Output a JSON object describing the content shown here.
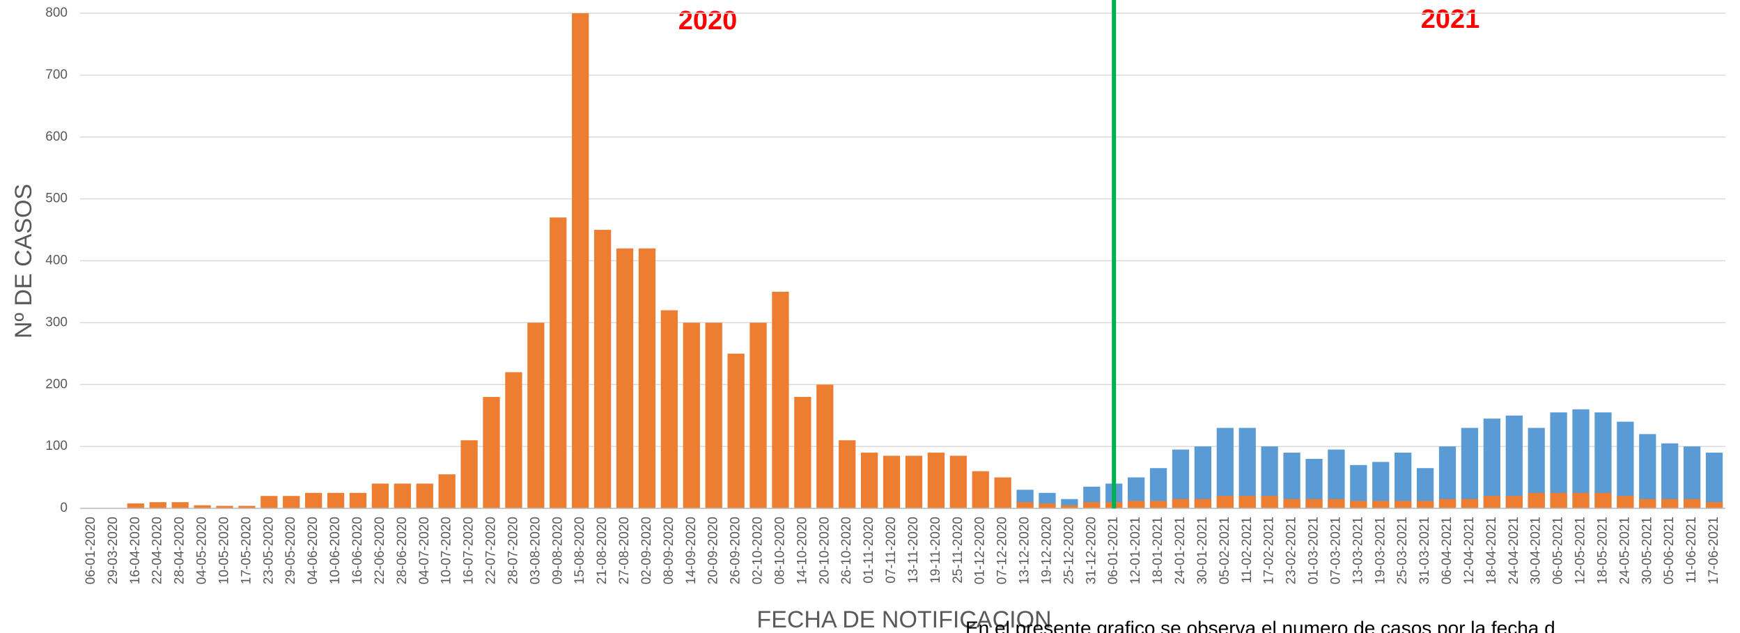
{
  "chart_data": {
    "type": "bar",
    "y_label": "Nº DE CASOS",
    "x_label": "FECHA DE NOTIFICACION",
    "annotations": [
      "2020",
      "2021"
    ],
    "note": "En el presente grafico se observa el numero de casos por la fecha d",
    "categories": [
      "06-01-2020",
      "29-03-2020",
      "16-04-2020",
      "22-04-2020",
      "28-04-2020",
      "04-05-2020",
      "10-05-2020",
      "17-05-2020",
      "23-05-2020",
      "29-05-2020",
      "04-06-2020",
      "10-06-2020",
      "16-06-2020",
      "22-06-2020",
      "28-06-2020",
      "04-07-2020",
      "10-07-2020",
      "16-07-2020",
      "22-07-2020",
      "28-07-2020",
      "03-08-2020",
      "09-08-2020",
      "15-08-2020",
      "21-08-2020",
      "27-08-2020",
      "02-09-2020",
      "08-09-2020",
      "14-09-2020",
      "20-09-2020",
      "26-09-2020",
      "02-10-2020",
      "08-10-2020",
      "14-10-2020",
      "20-10-2020",
      "26-10-2020",
      "01-11-2020",
      "07-11-2020",
      "13-11-2020",
      "19-11-2020",
      "25-11-2020",
      "01-12-2020",
      "07-12-2020",
      "13-12-2020",
      "19-12-2020",
      "25-12-2020",
      "31-12-2020",
      "06-01-2021",
      "12-01-2021",
      "18-01-2021",
      "24-01-2021",
      "30-01-2021",
      "05-02-2021",
      "11-02-2021",
      "17-02-2021",
      "23-02-2021",
      "01-03-2021",
      "07-03-2021",
      "13-03-2021",
      "19-03-2021",
      "25-03-2021",
      "31-03-2021",
      "06-04-2021",
      "12-04-2021",
      "18-04-2021",
      "24-04-2021",
      "30-04-2021",
      "06-05-2021",
      "12-05-2021",
      "18-05-2021",
      "24-05-2021",
      "30-05-2021",
      "05-06-2021",
      "11-06-2021",
      "17-06-2021"
    ],
    "series": [
      {
        "color": "#5b9bd5",
        "values": [
          0,
          0,
          0,
          0,
          0,
          0,
          0,
          0,
          0,
          0,
          0,
          0,
          0,
          0,
          0,
          0,
          0,
          0,
          0,
          0,
          0,
          0,
          0,
          0,
          0,
          0,
          0,
          0,
          0,
          0,
          0,
          0,
          0,
          0,
          0,
          0,
          0,
          0,
          0,
          0,
          0,
          20,
          30,
          25,
          15,
          35,
          40,
          50,
          65,
          95,
          100,
          130,
          130,
          100,
          90,
          80,
          95,
          70,
          75,
          90,
          65,
          100,
          130,
          145,
          150,
          130,
          155,
          160,
          155,
          140,
          120,
          105,
          100,
          90
        ]
      },
      {
        "color": "#ed7d31",
        "values": [
          0,
          0,
          8,
          10,
          10,
          5,
          4,
          4,
          20,
          20,
          25,
          25,
          25,
          40,
          40,
          40,
          55,
          110,
          180,
          220,
          300,
          470,
          800,
          450,
          420,
          420,
          320,
          300,
          300,
          250,
          300,
          350,
          180,
          200,
          110,
          90,
          85,
          85,
          90,
          85,
          60,
          50,
          10,
          8,
          5,
          10,
          10,
          12,
          12,
          15,
          15,
          20,
          20,
          20,
          15,
          15,
          15,
          12,
          12,
          12,
          12,
          15,
          15,
          20,
          20,
          25,
          25,
          25,
          25,
          20,
          15,
          15,
          15,
          10
        ]
      }
    ],
    "ylim": [
      0,
      800
    ],
    "yticks": [
      0,
      100,
      200,
      300,
      400,
      500,
      600,
      700,
      800
    ],
    "grid": true
  }
}
